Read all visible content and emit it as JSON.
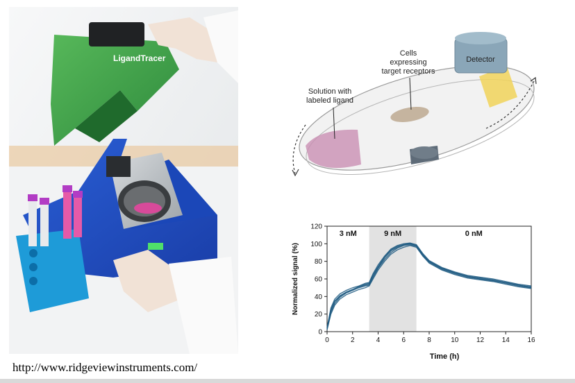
{
  "photo": {
    "brand_label": "LigandTracer"
  },
  "schematic": {
    "label_detector": "Detector",
    "label_cells_line1": "Cells",
    "label_cells_line2": "expressing",
    "label_cells_line3": "target receptors",
    "label_solution_line1": "Solution with",
    "label_solution_line2": "labeled ligand",
    "colors": {
      "detector": "#8aa6b8",
      "beam": "#f1d35a",
      "solution": "#c98fb3",
      "cells": "#b9a48a",
      "rotor": "#5e6b78"
    }
  },
  "chart_data": {
    "type": "line",
    "xlabel": "Time (h)",
    "ylabel": "Normalized signal (%)",
    "xlim": [
      0,
      16
    ],
    "ylim": [
      0,
      120
    ],
    "xticks": [
      0,
      2,
      4,
      6,
      8,
      10,
      12,
      14,
      16
    ],
    "yticks": [
      0,
      20,
      40,
      60,
      80,
      100,
      120
    ],
    "phases": [
      {
        "label": "3 nM",
        "x0": 0,
        "x1": 3.3,
        "shaded": false
      },
      {
        "label": "9 nM",
        "x0": 3.3,
        "x1": 7.0,
        "shaded": true
      },
      {
        "label": "0 nM",
        "x0": 7.0,
        "x1": 16,
        "shaded": false
      }
    ],
    "line_color": "#1f5b82",
    "x": [
      0,
      0.3,
      0.6,
      1.0,
      1.5,
      2.0,
      2.5,
      3.0,
      3.3,
      3.6,
      4.0,
      4.5,
      5.0,
      5.5,
      6.0,
      6.5,
      7.0,
      7.5,
      8.0,
      9.0,
      10.0,
      11.0,
      12.0,
      13.0,
      14.0,
      15.0,
      16.0
    ],
    "series": [
      {
        "values": [
          4,
          25,
          35,
          41,
          45,
          48,
          51,
          54,
          55,
          65,
          74,
          85,
          93,
          97,
          99,
          100,
          98,
          88,
          80,
          72,
          67,
          63,
          61,
          59,
          56,
          53,
          51
        ]
      },
      {
        "values": [
          3,
          22,
          32,
          39,
          44,
          47,
          50,
          52,
          53,
          62,
          72,
          82,
          90,
          95,
          98,
          99,
          97,
          87,
          79,
          71,
          66,
          62,
          60,
          58,
          55,
          52,
          50
        ]
      },
      {
        "values": [
          5,
          27,
          37,
          43,
          47,
          50,
          52,
          55,
          56,
          66,
          76,
          86,
          94,
          98,
          100,
          101,
          99,
          89,
          81,
          73,
          68,
          64,
          62,
          60,
          57,
          54,
          52
        ]
      },
      {
        "values": [
          2,
          20,
          30,
          37,
          42,
          45,
          48,
          50,
          52,
          60,
          70,
          80,
          88,
          93,
          96,
          98,
          96,
          86,
          78,
          70,
          65,
          61,
          59,
          57,
          54,
          51,
          49
        ]
      },
      {
        "values": [
          4,
          24,
          34,
          40,
          45,
          48,
          51,
          53,
          54,
          63,
          73,
          84,
          92,
          96,
          99,
          100,
          98,
          87,
          80,
          72,
          67,
          63,
          60,
          58,
          56,
          53,
          50
        ]
      }
    ]
  },
  "footer": {
    "url": "http://www.ridgeviewinstruments.com/"
  }
}
